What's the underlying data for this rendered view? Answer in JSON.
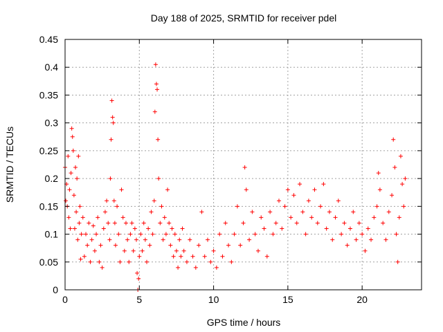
{
  "chart_data": {
    "type": "scatter",
    "title": "Day 188 of 2025, SRMTID for receiver pdel",
    "xlabel": "GPS time / hours",
    "ylabel": "SRMTID / TECUs",
    "xlim": [
      0,
      24
    ],
    "ylim": [
      0,
      0.45
    ],
    "xticks": [
      0,
      5,
      10,
      15,
      20
    ],
    "xtick_labels": [
      "0",
      "5",
      "10",
      "15",
      "20"
    ],
    "yticks": [
      0,
      0.05,
      0.1,
      0.15,
      0.2,
      0.25,
      0.3,
      0.35,
      0.4,
      0.45
    ],
    "ytick_labels": [
      "0",
      "0.05",
      "0.1",
      "0.15",
      "0.2",
      "0.25",
      "0.3",
      "0.35",
      "0.4",
      "0.45"
    ],
    "grid": true,
    "marker": "+",
    "color": "#ff0000",
    "series": [
      {
        "name": "SRMTID",
        "points": [
          [
            0.0,
            0.22
          ],
          [
            0.05,
            0.16
          ],
          [
            0.1,
            0.19
          ],
          [
            0.15,
            0.15
          ],
          [
            0.2,
            0.24
          ],
          [
            0.25,
            0.13
          ],
          [
            0.3,
            0.18
          ],
          [
            0.35,
            0.11
          ],
          [
            0.4,
            0.21
          ],
          [
            0.45,
            0.29
          ],
          [
            0.5,
            0.275
          ],
          [
            0.55,
            0.25
          ],
          [
            0.6,
            0.17
          ],
          [
            0.65,
            0.11
          ],
          [
            0.7,
            0.22
          ],
          [
            0.75,
            0.14
          ],
          [
            0.8,
            0.2
          ],
          [
            0.85,
            0.09
          ],
          [
            0.9,
            0.24
          ],
          [
            0.95,
            0.12
          ],
          [
            1.0,
            0.15
          ],
          [
            1.05,
            0.055
          ],
          [
            1.1,
            0.1
          ],
          [
            1.2,
            0.13
          ],
          [
            1.3,
            0.06
          ],
          [
            1.4,
            0.1
          ],
          [
            1.5,
            0.08
          ],
          [
            1.6,
            0.12
          ],
          [
            1.7,
            0.05
          ],
          [
            1.8,
            0.09
          ],
          [
            1.9,
            0.115
          ],
          [
            2.0,
            0.07
          ],
          [
            2.1,
            0.1
          ],
          [
            2.2,
            0.13
          ],
          [
            2.3,
            0.05
          ],
          [
            2.4,
            0.08
          ],
          [
            2.5,
            0.04
          ],
          [
            2.6,
            0.11
          ],
          [
            2.7,
            0.14
          ],
          [
            2.8,
            0.16
          ],
          [
            2.9,
            0.12
          ],
          [
            3.0,
            0.09
          ],
          [
            3.05,
            0.2
          ],
          [
            3.1,
            0.27
          ],
          [
            3.15,
            0.34
          ],
          [
            3.2,
            0.31
          ],
          [
            3.25,
            0.3
          ],
          [
            3.3,
            0.16
          ],
          [
            3.35,
            0.12
          ],
          [
            3.4,
            0.08
          ],
          [
            3.5,
            0.15
          ],
          [
            3.6,
            0.1
          ],
          [
            3.7,
            0.05
          ],
          [
            3.8,
            0.18
          ],
          [
            3.9,
            0.13
          ],
          [
            4.0,
            0.07
          ],
          [
            4.1,
            0.12
          ],
          [
            4.2,
            0.09
          ],
          [
            4.3,
            0.05
          ],
          [
            4.4,
            0.1
          ],
          [
            4.5,
            0.12
          ],
          [
            4.6,
            0.07
          ],
          [
            4.7,
            0.11
          ],
          [
            4.8,
            0.09
          ],
          [
            4.85,
            0.03
          ],
          [
            4.9,
            0.0
          ],
          [
            4.95,
            0.02
          ],
          [
            5.0,
            0.06
          ],
          [
            5.1,
            0.1
          ],
          [
            5.2,
            0.07
          ],
          [
            5.3,
            0.12
          ],
          [
            5.4,
            0.09
          ],
          [
            5.5,
            0.05
          ],
          [
            5.6,
            0.11
          ],
          [
            5.7,
            0.08
          ],
          [
            5.8,
            0.14
          ],
          [
            5.9,
            0.1
          ],
          [
            6.0,
            0.16
          ],
          [
            6.05,
            0.32
          ],
          [
            6.1,
            0.405
          ],
          [
            6.15,
            0.37
          ],
          [
            6.2,
            0.36
          ],
          [
            6.25,
            0.27
          ],
          [
            6.3,
            0.2
          ],
          [
            6.4,
            0.12
          ],
          [
            6.5,
            0.15
          ],
          [
            6.6,
            0.09
          ],
          [
            6.7,
            0.13
          ],
          [
            6.8,
            0.1
          ],
          [
            6.9,
            0.18
          ],
          [
            7.0,
            0.12
          ],
          [
            7.1,
            0.08
          ],
          [
            7.2,
            0.11
          ],
          [
            7.3,
            0.06
          ],
          [
            7.4,
            0.1
          ],
          [
            7.5,
            0.07
          ],
          [
            7.6,
            0.04
          ],
          [
            7.7,
            0.09
          ],
          [
            7.8,
            0.06
          ],
          [
            7.9,
            0.11
          ],
          [
            8.0,
            0.07
          ],
          [
            8.2,
            0.05
          ],
          [
            8.4,
            0.09
          ],
          [
            8.6,
            0.06
          ],
          [
            8.8,
            0.04
          ],
          [
            9.0,
            0.08
          ],
          [
            9.2,
            0.14
          ],
          [
            9.4,
            0.06
          ],
          [
            9.6,
            0.09
          ],
          [
            9.8,
            0.05
          ],
          [
            10.0,
            0.07
          ],
          [
            10.2,
            0.04
          ],
          [
            10.4,
            0.1
          ],
          [
            10.6,
            0.06
          ],
          [
            10.8,
            0.12
          ],
          [
            11.0,
            0.08
          ],
          [
            11.2,
            0.05
          ],
          [
            11.4,
            0.1
          ],
          [
            11.6,
            0.15
          ],
          [
            11.8,
            0.08
          ],
          [
            12.0,
            0.12
          ],
          [
            12.1,
            0.22
          ],
          [
            12.2,
            0.18
          ],
          [
            12.4,
            0.09
          ],
          [
            12.6,
            0.14
          ],
          [
            12.8,
            0.1
          ],
          [
            13.0,
            0.07
          ],
          [
            13.2,
            0.13
          ],
          [
            13.4,
            0.11
          ],
          [
            13.6,
            0.06
          ],
          [
            13.8,
            0.14
          ],
          [
            14.0,
            0.1
          ],
          [
            14.2,
            0.12
          ],
          [
            14.4,
            0.16
          ],
          [
            14.6,
            0.11
          ],
          [
            14.8,
            0.15
          ],
          [
            15.0,
            0.18
          ],
          [
            15.2,
            0.13
          ],
          [
            15.4,
            0.17
          ],
          [
            15.6,
            0.12
          ],
          [
            15.8,
            0.19
          ],
          [
            16.0,
            0.14
          ],
          [
            16.2,
            0.1
          ],
          [
            16.4,
            0.16
          ],
          [
            16.6,
            0.13
          ],
          [
            16.8,
            0.18
          ],
          [
            17.0,
            0.12
          ],
          [
            17.2,
            0.15
          ],
          [
            17.4,
            0.19
          ],
          [
            17.6,
            0.11
          ],
          [
            17.8,
            0.14
          ],
          [
            18.0,
            0.09
          ],
          [
            18.2,
            0.13
          ],
          [
            18.4,
            0.16
          ],
          [
            18.6,
            0.1
          ],
          [
            18.8,
            0.12
          ],
          [
            19.0,
            0.08
          ],
          [
            19.2,
            0.11
          ],
          [
            19.4,
            0.14
          ],
          [
            19.6,
            0.09
          ],
          [
            19.8,
            0.12
          ],
          [
            20.0,
            0.1
          ],
          [
            20.2,
            0.07
          ],
          [
            20.4,
            0.11
          ],
          [
            20.6,
            0.09
          ],
          [
            20.8,
            0.13
          ],
          [
            21.0,
            0.15
          ],
          [
            21.1,
            0.21
          ],
          [
            21.2,
            0.18
          ],
          [
            21.4,
            0.12
          ],
          [
            21.6,
            0.09
          ],
          [
            21.8,
            0.14
          ],
          [
            22.0,
            0.17
          ],
          [
            22.1,
            0.27
          ],
          [
            22.2,
            0.22
          ],
          [
            22.3,
            0.1
          ],
          [
            22.4,
            0.05
          ],
          [
            22.5,
            0.13
          ],
          [
            22.6,
            0.24
          ],
          [
            22.7,
            0.19
          ],
          [
            22.8,
            0.15
          ],
          [
            22.9,
            0.2
          ]
        ]
      }
    ]
  }
}
